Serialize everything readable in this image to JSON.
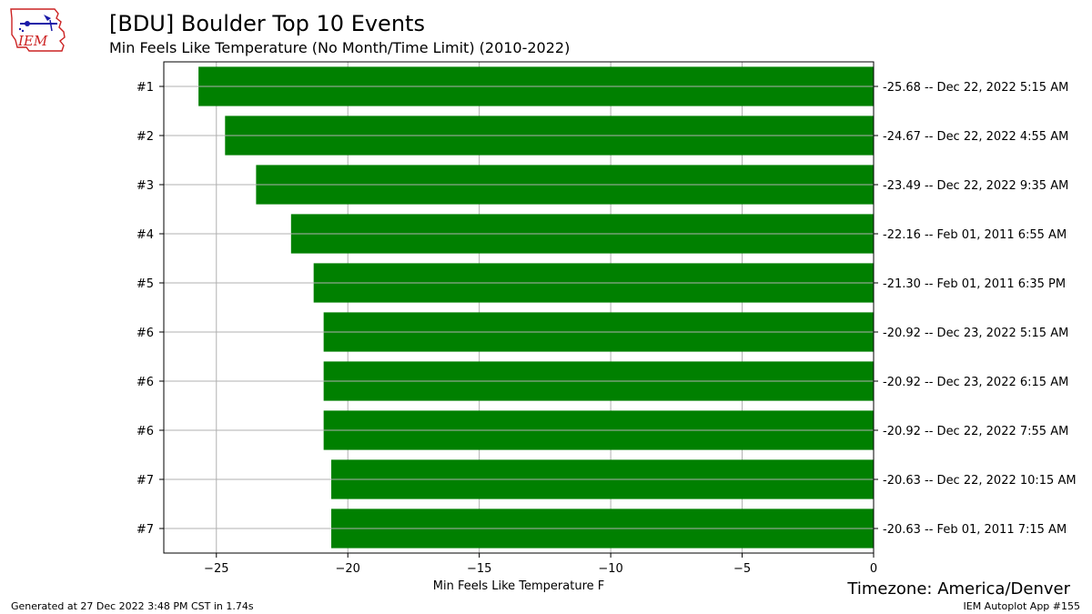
{
  "header": {
    "title": "[BDU] Boulder Top 10 Events",
    "subtitle": "Min Feels Like Temperature  (No Month/Time Limit) (2010-2022)",
    "logo_text": "IEM"
  },
  "timezone_label": "Timezone: America/Denver",
  "footer": {
    "generated": "Generated at 27 Dec 2022 3:48 PM CST in 1.74s",
    "app": "IEM Autoplot App #155"
  },
  "colors": {
    "bar": "#008000",
    "grid": "#b0b0b0",
    "logo_red": "#cc2222",
    "logo_blue": "#1a1aa8"
  },
  "chart_data": {
    "type": "bar",
    "orientation": "horizontal",
    "xlabel": "Min Feels Like Temperature F",
    "xlim": [
      -27,
      0
    ],
    "xticks": [
      -25,
      -20,
      -15,
      -10,
      -5,
      0
    ],
    "grid": true,
    "categories": [
      "#1",
      "#2",
      "#3",
      "#4",
      "#5",
      "#6",
      "#6",
      "#6",
      "#7",
      "#7"
    ],
    "values": [
      -25.68,
      -24.67,
      -23.49,
      -22.16,
      -21.3,
      -20.92,
      -20.92,
      -20.92,
      -20.63,
      -20.63
    ],
    "right_labels": [
      "-25.68 -- Dec 22, 2022 5:15 AM",
      "-24.67 -- Dec 22, 2022 4:55 AM",
      "-23.49 -- Dec 22, 2022 9:35 AM",
      "-22.16 -- Feb 01, 2011 6:55 AM",
      "-21.30 -- Feb 01, 2011 6:35 PM",
      "-20.92 -- Dec 23, 2022 5:15 AM",
      "-20.92 -- Dec 23, 2022 6:15 AM",
      "-20.92 -- Dec 22, 2022 7:55 AM",
      "-20.63 -- Dec 22, 2022 10:15 AM",
      "-20.63 -- Feb 01, 2011 7:15 AM"
    ]
  }
}
